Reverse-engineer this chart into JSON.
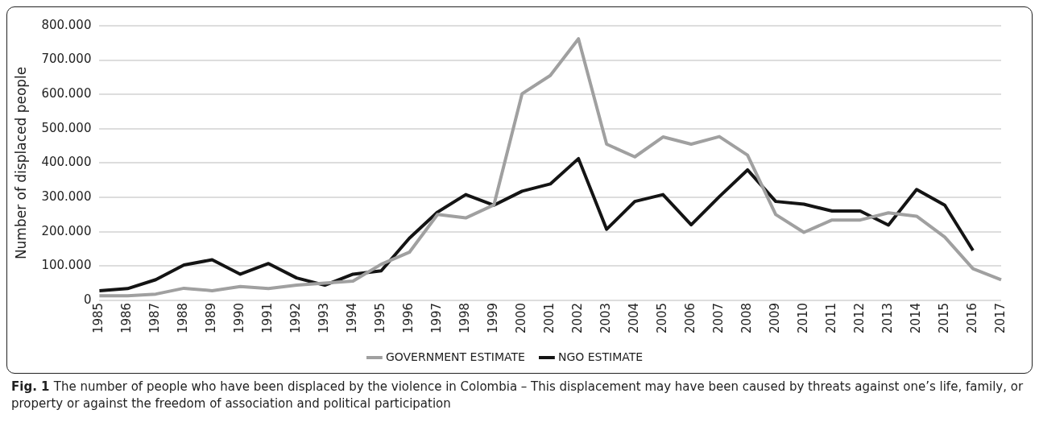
{
  "chart_data": {
    "type": "line",
    "ylabel": "Number of displaced people",
    "categories": [
      "1985",
      "1986",
      "1987",
      "1988",
      "1989",
      "1990",
      "1991",
      "1992",
      "1993",
      "1994",
      "1995",
      "1996",
      "1997",
      "1998",
      "1999",
      "2000",
      "2001",
      "2002",
      "2003",
      "2004",
      "2005",
      "2006",
      "2007",
      "2008",
      "2009",
      "2010",
      "2011",
      "2012",
      "2013",
      "2014",
      "2015",
      "2016",
      "2017"
    ],
    "series": [
      {
        "name": "GOVERNMENT ESTIMATE",
        "color": "#a0a0a0",
        "values": [
          13000,
          13000,
          18000,
          35000,
          28000,
          40000,
          34000,
          44000,
          50000,
          56000,
          105000,
          140000,
          250000,
          240000,
          278000,
          602000,
          655000,
          762000,
          455000,
          418000,
          476000,
          455000,
          477000,
          423000,
          250000,
          198000,
          234000,
          234000,
          255000,
          245000,
          184000,
          92000,
          60000
        ]
      },
      {
        "name": "NGO ESTIMATE",
        "color": "#141414",
        "values": [
          28000,
          34000,
          60000,
          103000,
          118000,
          76000,
          107000,
          65000,
          44000,
          76000,
          86000,
          181000,
          257000,
          308000,
          277000,
          318000,
          339000,
          413000,
          207000,
          288000,
          308000,
          220000,
          302000,
          380000,
          288000,
          280000,
          260000,
          260000,
          219000,
          323000,
          277000,
          145000,
          null
        ]
      }
    ],
    "ylim": [
      0,
      800000
    ],
    "yticks": [
      0,
      {
        "value": 100000,
        "label": "100.000"
      },
      {
        "value": 200000,
        "label": "200.000"
      },
      {
        "value": 300000,
        "label": "300.000"
      },
      {
        "value": 400000,
        "label": "400.000"
      },
      {
        "value": 500000,
        "label": "500.000"
      },
      {
        "value": 600000,
        "label": "600.000"
      },
      {
        "value": 700000,
        "label": "700.000"
      },
      {
        "value": 800000,
        "label": "800.000"
      }
    ],
    "grid": "y",
    "legend": "bottom",
    "marker": "none",
    "line_style": "solid",
    "annotations": [
      "Fig. 1",
      "The number of people who have been displaced by the violence in Colombia – This displacement may have been caused by threats against one’s life, family, or property or against the freedom of association and political participation"
    ]
  }
}
